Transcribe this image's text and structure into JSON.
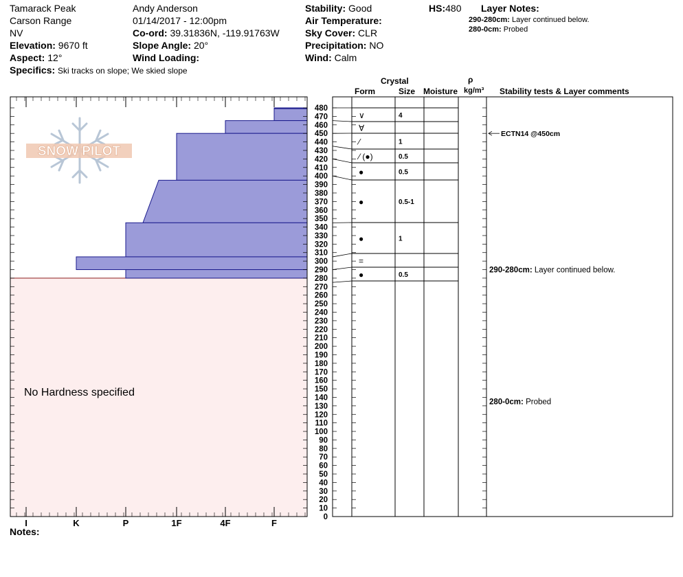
{
  "header": {
    "location": "Tamarack Peak",
    "range": "Carson Range",
    "state": "NV",
    "elevation_label": "Elevation:",
    "elevation_value": "9670 ft",
    "aspect_label": "Aspect:",
    "aspect_value": "12°",
    "specifics_label": "Specifics:",
    "specifics_value": "Ski tracks on slope; We skied slope",
    "observer": "Andy Anderson",
    "datetime": "01/14/2017 - 12:00pm",
    "coord_label": "Co-ord:",
    "coord_value": "39.31836N, -119.91763W",
    "slope_label": "Slope Angle:",
    "slope_value": "20°",
    "wind_loading_label": "Wind Loading:",
    "stability_label": "Stability:",
    "stability_value": "Good",
    "air_temp_label": "Air Temperature:",
    "sky_label": "Sky Cover:",
    "sky_value": "CLR",
    "precip_label": "Precipitation:",
    "precip_value": "NO",
    "wind_label": "Wind:",
    "wind_value": "Calm",
    "hs_label": "HS:",
    "hs_value": "480",
    "layer_notes_label": "Layer Notes:",
    "layer_notes": [
      {
        "range": "290-280cm:",
        "text": "Layer continued below."
      },
      {
        "range": "280-0cm:",
        "text": "Probed"
      }
    ]
  },
  "columns": {
    "crystal": "Crystal",
    "form": "Form",
    "size": "Size",
    "moisture": "Moisture",
    "rho": "ρ",
    "density_unit": "kg/m³",
    "stability": "Stability tests & Layer comments"
  },
  "no_hardness": "No Hardness specified",
  "notes_label": "Notes:",
  "logo_text": "SNOW PILOT",
  "colors": {
    "hardness_fill": "#9b9bd9",
    "hardness_edge": "#1a1a8c",
    "no_hardness_fill": "#fdeeee",
    "no_hardness_edge": "#8b1a1a"
  },
  "chart_data": {
    "type": "bar",
    "title": "",
    "y_axis": {
      "min": 0,
      "max": 480,
      "tick_step": 10,
      "unit": "cm"
    },
    "hardness_scale": [
      "I",
      "K",
      "P",
      "1F",
      "4F",
      "F"
    ],
    "hardness_layers": [
      {
        "top": 480,
        "bottom": 479,
        "hardness": "F"
      },
      {
        "top": 479,
        "bottom": 465,
        "hardness": "F"
      },
      {
        "top": 465,
        "bottom": 450,
        "hardness": "4F"
      },
      {
        "top": 450,
        "bottom": 395,
        "hardness": "1F"
      },
      {
        "top": 395,
        "bottom": 345,
        "hardness": "P+",
        "hardness_top": "1F-",
        "hardness_bottom": "P+"
      },
      {
        "top": 345,
        "bottom": 305,
        "hardness": "P"
      },
      {
        "top": 305,
        "bottom": 290,
        "hardness": "K"
      },
      {
        "top": 290,
        "bottom": 280,
        "hardness": "P"
      }
    ],
    "no_hardness_range": {
      "top": 280,
      "bottom": 0
    },
    "crystal_layers": [
      {
        "top": 480,
        "bottom": 465,
        "form": "∨",
        "size": "4"
      },
      {
        "top": 465,
        "bottom": 450,
        "form": "∀",
        "size": ""
      },
      {
        "top": 450,
        "bottom": 435,
        "form": "⁄",
        "size": "1"
      },
      {
        "top": 435,
        "bottom": 420,
        "form": "⁄ (●)",
        "size": "0.5"
      },
      {
        "top": 420,
        "bottom": 400,
        "form": "●",
        "size": "0.5"
      },
      {
        "top": 400,
        "bottom": 345,
        "form": "●",
        "size": "0.5-1"
      },
      {
        "top": 345,
        "bottom": 305,
        "form": "●",
        "size": "1"
      },
      {
        "top": 305,
        "bottom": 290,
        "form": "=",
        "size": ""
      },
      {
        "top": 290,
        "bottom": 275,
        "form": "●",
        "size": "0.5"
      }
    ],
    "stability_tests": [
      {
        "depth": 450,
        "label": "ECTN14 @450cm"
      }
    ],
    "layer_comments": [
      {
        "depth": 290,
        "range": "290-280cm:",
        "text": "Layer continued below."
      },
      {
        "depth": 135,
        "range": "280-0cm:",
        "text": "Probed"
      }
    ]
  }
}
